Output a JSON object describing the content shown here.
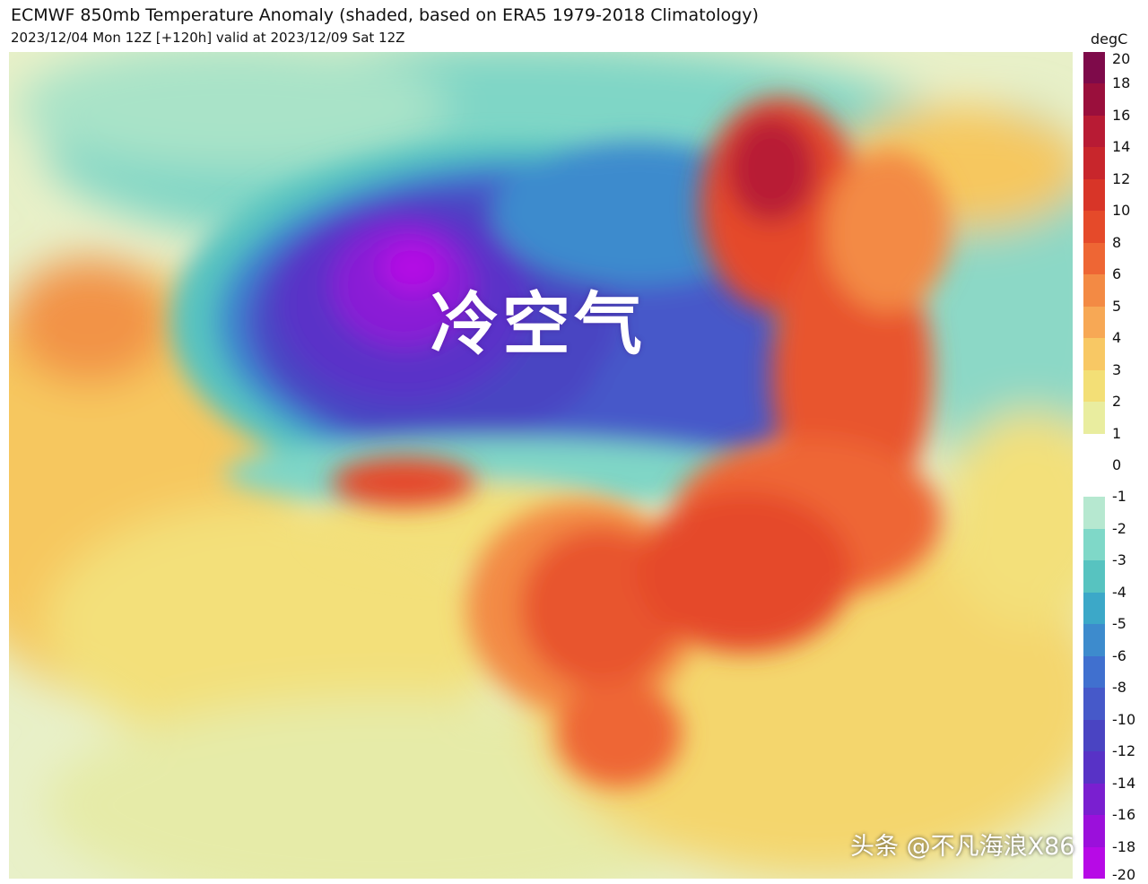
{
  "header": {
    "title": "ECMWF 850mb Temperature Anomaly (shaded, based on ERA5 1979-2018 Climatology)",
    "subtitle": "2023/12/04 Mon 12Z [+120h] valid at 2023/12/09 Sat 12Z"
  },
  "overlay": {
    "label": "冷空气"
  },
  "colorbar": {
    "unit": "degC",
    "ticks": [
      "20",
      "18",
      "16",
      "14",
      "12",
      "10",
      "8",
      "6",
      "5",
      "4",
      "3",
      "2",
      "1",
      "0",
      "-1",
      "-2",
      "-3",
      "-4",
      "-5",
      "-6",
      "-8",
      "-10",
      "-12",
      "-14",
      "-16",
      "-18",
      "-20"
    ],
    "colors": [
      "#7e0a4a",
      "#9a0f3c",
      "#b81b34",
      "#c8262c",
      "#d83528",
      "#e54a2a",
      "#ee6634",
      "#f38a44",
      "#f7a855",
      "#f8c864",
      "#f3df76",
      "#e9ed9f",
      "#ffffff",
      "#ffffff",
      "#b6e8d0",
      "#7fd8c8",
      "#57c3c0",
      "#3ca8c8",
      "#3d8bcd",
      "#4070cf",
      "#4659c9",
      "#4a44c2",
      "#5832c6",
      "#7a1fd0",
      "#9b10db",
      "#b70ae6"
    ]
  },
  "watermark": {
    "text": "头条 @不凡海浪X86"
  }
}
